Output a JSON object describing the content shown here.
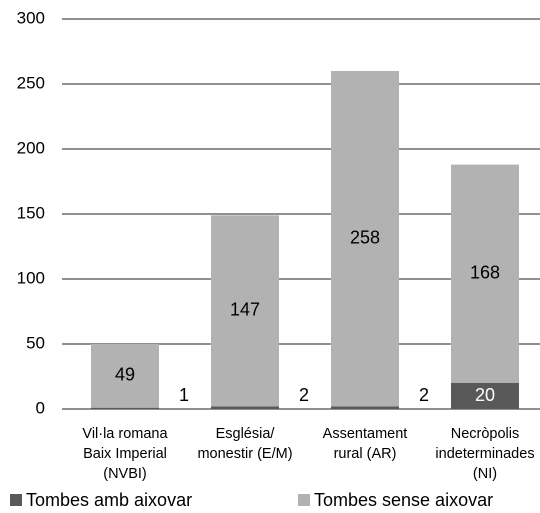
{
  "chart_data": {
    "type": "stacked_bar",
    "categories": [
      [
        "Vil·la romana",
        "Baix Imperial",
        "(NVBI)"
      ],
      [
        "Església/",
        "monestir (E/M)"
      ],
      [
        "Assentament",
        "rural (AR)"
      ],
      [
        "Necròpolis",
        "indeterminades",
        "(NI)"
      ]
    ],
    "series": [
      {
        "name": "Tombes amb aixovar",
        "color": "#595959",
        "label_color": "#ffffff",
        "values": [
          1,
          2,
          2,
          20
        ]
      },
      {
        "name": "Tombes sense aixovar",
        "color": "#b2b2b2",
        "label_color": "#000000",
        "values": [
          49,
          147,
          258,
          168
        ]
      }
    ],
    "ylim": [
      0,
      300
    ],
    "yticks": [
      0,
      50,
      100,
      150,
      200,
      250,
      300
    ],
    "grid": true,
    "legend": "bottom"
  }
}
